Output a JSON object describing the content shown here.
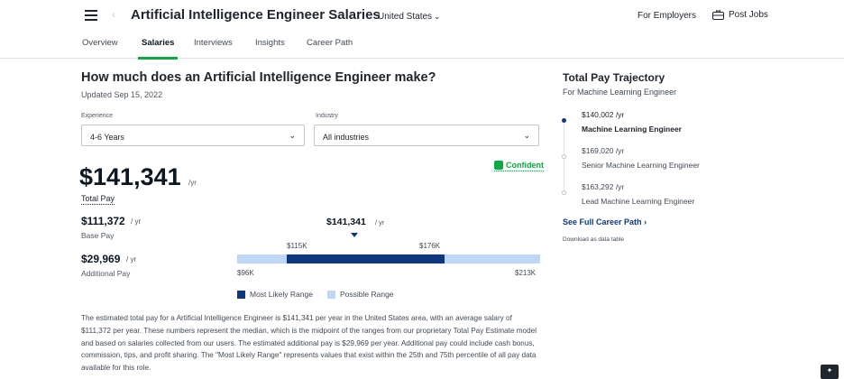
{
  "header": {
    "job_title": "Artificial Intelligence Engineer Salaries",
    "country": "United States",
    "for_employers": "For Employers",
    "post_jobs": "Post Jobs"
  },
  "tabs": [
    {
      "label": "Overview"
    },
    {
      "label": "Salaries",
      "active": true
    },
    {
      "label": "Interviews"
    },
    {
      "label": "Insights"
    },
    {
      "label": "Career Path"
    }
  ],
  "main": {
    "heading": "How much does an Artificial Intelligence Engineer make?",
    "updated": "Updated Sep 15, 2022",
    "experience": {
      "label": "Experience",
      "value": "4-6 Years"
    },
    "industry": {
      "label": "Industry",
      "value": "All industries"
    },
    "confidence": "Confident",
    "total_pay": {
      "amount": "$141,341",
      "unit": "/yr",
      "label": "Total Pay"
    },
    "base_pay": {
      "amount": "$111,372",
      "unit": "/ yr",
      "label": "Base Pay"
    },
    "additional_pay": {
      "amount": "$29,969",
      "unit": "/ yr",
      "label": "Additional Pay"
    },
    "range": {
      "median": "$141,341",
      "median_unit": "/ yr",
      "likely_low": "$115K",
      "likely_high": "$176K",
      "possible_low": "$96K",
      "possible_high": "$213K",
      "median_value": 141341,
      "likely_low_value": 115000,
      "likely_high_value": 176000,
      "possible_low_value": 96000,
      "possible_high_value": 213000
    },
    "legend": {
      "likely": "Most Likely Range",
      "possible": "Possible Range"
    },
    "description": "The estimated total pay for a Artificial Intelligence Engineer is $141,341 per year in the United States area, with an average salary of $111,372 per year. These numbers represent the median, which is the midpoint of the ranges from our proprietary Total Pay Estimate model and based on salaries collected from our users. The estimated additional pay is $29,969 per year. Additional pay could include cash bonus, commission, tips, and profit sharing. The \"Most Likely Range\" represents values that exist within the 25th and 75th percentile of all pay data available for this role."
  },
  "trajectory": {
    "title": "Total Pay Trajectory",
    "subtitle": "For Machine Learning Engineer",
    "steps": [
      {
        "pay": "$140,002 /yr",
        "role": "Machine Learning Engineer"
      },
      {
        "pay": "$169,020 /yr",
        "role": "Senior Machine Learning Engineer"
      },
      {
        "pay": "$163,292 /yr",
        "role": "Lead Machine Learning Engineer"
      }
    ],
    "see_full": "See Full Career Path",
    "download": "Download as data table"
  },
  "colors": {
    "accent_green": "#0caa41",
    "likely_range": "#0d3880",
    "possible_range": "#bfd6f6"
  }
}
